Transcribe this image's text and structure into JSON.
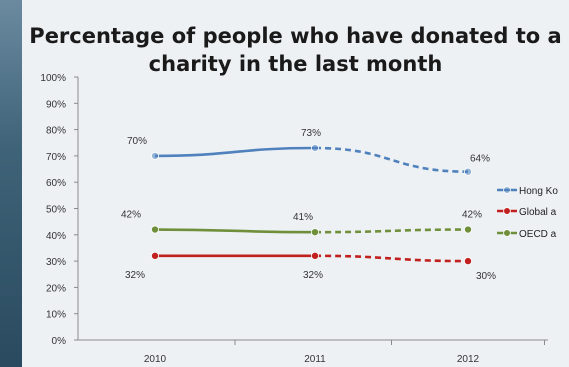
{
  "chart_data": {
    "type": "line",
    "title_lines": [
      "Percentage of people who have donated to a",
      "charity in the last month"
    ],
    "categories": [
      "2010",
      "2011",
      "2012"
    ],
    "ylim": [
      0,
      100
    ],
    "yticks": [
      "0%",
      "10%",
      "20%",
      "30%",
      "40%",
      "50%",
      "60%",
      "70%",
      "80%",
      "90%",
      "100%"
    ],
    "series": [
      {
        "name": "Hong Ko",
        "values": [
          70,
          73,
          64
        ],
        "labels": [
          "70%",
          "73%",
          "64%"
        ],
        "color": "#4f81bd"
      },
      {
        "name": "Global a",
        "values": [
          32,
          32,
          30
        ],
        "labels": [
          "32%",
          "32%",
          "30%"
        ],
        "color": "#c0201e"
      },
      {
        "name": "OECD a",
        "values": [
          42,
          41,
          42
        ],
        "labels": [
          "42%",
          "41%",
          "42%"
        ],
        "color": "#6f8f3a"
      }
    ],
    "solid_segment_until_index": 1,
    "legend_position": "right"
  }
}
